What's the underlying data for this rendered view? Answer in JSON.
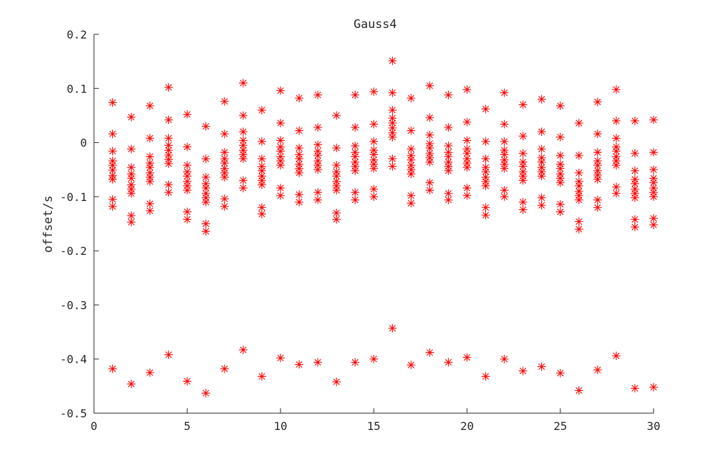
{
  "chart_data": {
    "type": "scatter",
    "title": "Gauss4",
    "xlabel": "",
    "ylabel": "offset/s",
    "xlim": [
      0,
      30
    ],
    "ylim": [
      -0.5,
      0.2
    ],
    "xticks": [
      "0",
      "5",
      "10",
      "15",
      "20",
      "25",
      "30"
    ],
    "yticks": [
      "0.2",
      "0.1",
      "0",
      "-0.1",
      "-0.2",
      "-0.3",
      "-0.4",
      "-0.5"
    ],
    "xtick_values": [
      0,
      5,
      10,
      15,
      20,
      25,
      30
    ],
    "ytick_values": [
      0.2,
      0.1,
      0,
      -0.1,
      -0.2,
      -0.3,
      -0.4,
      -0.5
    ],
    "marker": "asterisk",
    "marker_color": "#ff0000",
    "grid": false,
    "points": [
      [
        1,
        0.074
      ],
      [
        1,
        0.016
      ],
      [
        1,
        -0.016
      ],
      [
        1,
        -0.034
      ],
      [
        1,
        -0.042
      ],
      [
        1,
        -0.051
      ],
      [
        1,
        -0.061
      ],
      [
        1,
        -0.068
      ],
      [
        1,
        -0.105
      ],
      [
        1,
        -0.118
      ],
      [
        1,
        -0.418
      ],
      [
        2,
        0.047
      ],
      [
        2,
        -0.012
      ],
      [
        2,
        -0.046
      ],
      [
        2,
        -0.058
      ],
      [
        2,
        -0.066
      ],
      [
        2,
        -0.078
      ],
      [
        2,
        -0.086
      ],
      [
        2,
        -0.094
      ],
      [
        2,
        -0.135
      ],
      [
        2,
        -0.147
      ],
      [
        2,
        -0.446
      ],
      [
        3,
        0.068
      ],
      [
        3,
        0.008
      ],
      [
        3,
        -0.026
      ],
      [
        3,
        -0.038
      ],
      [
        3,
        -0.046
      ],
      [
        3,
        -0.056
      ],
      [
        3,
        -0.064
      ],
      [
        3,
        -0.072
      ],
      [
        3,
        -0.113
      ],
      [
        3,
        -0.126
      ],
      [
        3,
        -0.425
      ],
      [
        4,
        0.102
      ],
      [
        4,
        0.042
      ],
      [
        4,
        0.008
      ],
      [
        4,
        -0.005
      ],
      [
        4,
        -0.014
      ],
      [
        4,
        -0.023
      ],
      [
        4,
        -0.031
      ],
      [
        4,
        -0.039
      ],
      [
        4,
        -0.078
      ],
      [
        4,
        -0.092
      ],
      [
        4,
        -0.392
      ],
      [
        5,
        0.052
      ],
      [
        5,
        -0.008
      ],
      [
        5,
        -0.042
      ],
      [
        5,
        -0.054
      ],
      [
        5,
        -0.062
      ],
      [
        5,
        -0.072
      ],
      [
        5,
        -0.08
      ],
      [
        5,
        -0.088
      ],
      [
        5,
        -0.128
      ],
      [
        5,
        -0.142
      ],
      [
        5,
        -0.441
      ],
      [
        6,
        0.03
      ],
      [
        6,
        -0.03
      ],
      [
        6,
        -0.064
      ],
      [
        6,
        -0.076
      ],
      [
        6,
        -0.084
      ],
      [
        6,
        -0.094
      ],
      [
        6,
        -0.102
      ],
      [
        6,
        -0.11
      ],
      [
        6,
        -0.15
      ],
      [
        6,
        -0.164
      ],
      [
        6,
        -0.463
      ],
      [
        7,
        0.076
      ],
      [
        7,
        0.016
      ],
      [
        7,
        -0.018
      ],
      [
        7,
        -0.03
      ],
      [
        7,
        -0.038
      ],
      [
        7,
        -0.048
      ],
      [
        7,
        -0.056
      ],
      [
        7,
        -0.064
      ],
      [
        7,
        -0.104
      ],
      [
        7,
        -0.118
      ],
      [
        7,
        -0.418
      ],
      [
        8,
        0.11
      ],
      [
        8,
        0.05
      ],
      [
        8,
        0.02
      ],
      [
        8,
        0.004
      ],
      [
        8,
        -0.005
      ],
      [
        8,
        -0.014
      ],
      [
        8,
        -0.022
      ],
      [
        8,
        -0.03
      ],
      [
        8,
        -0.07
      ],
      [
        8,
        -0.084
      ],
      [
        8,
        -0.383
      ],
      [
        9,
        0.06
      ],
      [
        9,
        0.002
      ],
      [
        9,
        -0.03
      ],
      [
        9,
        -0.044
      ],
      [
        9,
        -0.052
      ],
      [
        9,
        -0.062
      ],
      [
        9,
        -0.07
      ],
      [
        9,
        -0.078
      ],
      [
        9,
        -0.12
      ],
      [
        9,
        -0.132
      ],
      [
        9,
        -0.432
      ],
      [
        10,
        0.096
      ],
      [
        10,
        0.036
      ],
      [
        10,
        0.004
      ],
      [
        10,
        -0.008
      ],
      [
        10,
        -0.016
      ],
      [
        10,
        -0.026
      ],
      [
        10,
        -0.034
      ],
      [
        10,
        -0.042
      ],
      [
        10,
        -0.084
      ],
      [
        10,
        -0.098
      ],
      [
        10,
        -0.398
      ],
      [
        11,
        0.082
      ],
      [
        11,
        0.022
      ],
      [
        11,
        -0.01
      ],
      [
        11,
        -0.022
      ],
      [
        11,
        -0.03
      ],
      [
        11,
        -0.04
      ],
      [
        11,
        -0.048
      ],
      [
        11,
        -0.056
      ],
      [
        11,
        -0.096
      ],
      [
        11,
        -0.11
      ],
      [
        11,
        -0.41
      ],
      [
        12,
        0.088
      ],
      [
        12,
        0.028
      ],
      [
        12,
        -0.004
      ],
      [
        12,
        -0.016
      ],
      [
        12,
        -0.024
      ],
      [
        12,
        -0.034
      ],
      [
        12,
        -0.042
      ],
      [
        12,
        -0.05
      ],
      [
        12,
        -0.092
      ],
      [
        12,
        -0.106
      ],
      [
        12,
        -0.406
      ],
      [
        13,
        0.05
      ],
      [
        13,
        -0.01
      ],
      [
        13,
        -0.042
      ],
      [
        13,
        -0.054
      ],
      [
        13,
        -0.062
      ],
      [
        13,
        -0.072
      ],
      [
        13,
        -0.08
      ],
      [
        13,
        -0.088
      ],
      [
        13,
        -0.13
      ],
      [
        13,
        -0.142
      ],
      [
        13,
        -0.442
      ],
      [
        14,
        0.088
      ],
      [
        14,
        0.028
      ],
      [
        14,
        -0.006
      ],
      [
        14,
        -0.018
      ],
      [
        14,
        -0.026
      ],
      [
        14,
        -0.036
      ],
      [
        14,
        -0.044
      ],
      [
        14,
        -0.052
      ],
      [
        14,
        -0.092
      ],
      [
        14,
        -0.106
      ],
      [
        14,
        -0.406
      ],
      [
        15,
        0.094
      ],
      [
        15,
        0.034
      ],
      [
        15,
        0.002
      ],
      [
        15,
        -0.014
      ],
      [
        15,
        -0.022
      ],
      [
        15,
        -0.032
      ],
      [
        15,
        -0.04
      ],
      [
        15,
        -0.048
      ],
      [
        15,
        -0.086
      ],
      [
        15,
        -0.1
      ],
      [
        15,
        -0.4
      ],
      [
        16,
        0.151
      ],
      [
        16,
        0.092
      ],
      [
        16,
        0.06
      ],
      [
        16,
        0.045
      ],
      [
        16,
        0.036
      ],
      [
        16,
        0.027
      ],
      [
        16,
        0.018
      ],
      [
        16,
        0.01
      ],
      [
        16,
        -0.03
      ],
      [
        16,
        -0.044
      ],
      [
        16,
        -0.343
      ],
      [
        17,
        0.082
      ],
      [
        17,
        0.022
      ],
      [
        17,
        -0.012
      ],
      [
        17,
        -0.024
      ],
      [
        17,
        -0.032
      ],
      [
        17,
        -0.042
      ],
      [
        17,
        -0.05
      ],
      [
        17,
        -0.058
      ],
      [
        17,
        -0.098
      ],
      [
        17,
        -0.112
      ],
      [
        17,
        -0.411
      ],
      [
        18,
        0.105
      ],
      [
        18,
        0.046
      ],
      [
        18,
        0.014
      ],
      [
        18,
        -0.002
      ],
      [
        18,
        -0.01
      ],
      [
        18,
        -0.02
      ],
      [
        18,
        -0.028
      ],
      [
        18,
        -0.036
      ],
      [
        18,
        -0.074
      ],
      [
        18,
        -0.088
      ],
      [
        18,
        -0.388
      ],
      [
        19,
        0.088
      ],
      [
        19,
        0.028
      ],
      [
        19,
        -0.006
      ],
      [
        19,
        -0.018
      ],
      [
        19,
        -0.026
      ],
      [
        19,
        -0.036
      ],
      [
        19,
        -0.044
      ],
      [
        19,
        -0.052
      ],
      [
        19,
        -0.094
      ],
      [
        19,
        -0.106
      ],
      [
        19,
        -0.406
      ],
      [
        20,
        0.098
      ],
      [
        20,
        0.038
      ],
      [
        20,
        0.004
      ],
      [
        20,
        -0.012
      ],
      [
        20,
        -0.02
      ],
      [
        20,
        -0.03
      ],
      [
        20,
        -0.038
      ],
      [
        20,
        -0.046
      ],
      [
        20,
        -0.084
      ],
      [
        20,
        -0.098
      ],
      [
        20,
        -0.397
      ],
      [
        21,
        0.062
      ],
      [
        21,
        0.002
      ],
      [
        21,
        -0.03
      ],
      [
        21,
        -0.046
      ],
      [
        21,
        -0.054
      ],
      [
        21,
        -0.064
      ],
      [
        21,
        -0.072
      ],
      [
        21,
        -0.08
      ],
      [
        21,
        -0.12
      ],
      [
        21,
        -0.134
      ],
      [
        21,
        -0.432
      ],
      [
        22,
        0.092
      ],
      [
        22,
        0.034
      ],
      [
        22,
        0.002
      ],
      [
        22,
        -0.014
      ],
      [
        22,
        -0.022
      ],
      [
        22,
        -0.032
      ],
      [
        22,
        -0.04
      ],
      [
        22,
        -0.048
      ],
      [
        22,
        -0.088
      ],
      [
        22,
        -0.1
      ],
      [
        22,
        -0.4
      ],
      [
        23,
        0.07
      ],
      [
        23,
        0.012
      ],
      [
        23,
        -0.02
      ],
      [
        23,
        -0.036
      ],
      [
        23,
        -0.044
      ],
      [
        23,
        -0.054
      ],
      [
        23,
        -0.062
      ],
      [
        23,
        -0.07
      ],
      [
        23,
        -0.11
      ],
      [
        23,
        -0.124
      ],
      [
        23,
        -0.422
      ],
      [
        24,
        0.08
      ],
      [
        24,
        0.02
      ],
      [
        24,
        -0.012
      ],
      [
        24,
        -0.028
      ],
      [
        24,
        -0.036
      ],
      [
        24,
        -0.046
      ],
      [
        24,
        -0.054
      ],
      [
        24,
        -0.062
      ],
      [
        24,
        -0.102
      ],
      [
        24,
        -0.116
      ],
      [
        24,
        -0.414
      ],
      [
        25,
        0.068
      ],
      [
        25,
        0.01
      ],
      [
        25,
        -0.024
      ],
      [
        25,
        -0.04
      ],
      [
        25,
        -0.048
      ],
      [
        25,
        -0.058
      ],
      [
        25,
        -0.066
      ],
      [
        25,
        -0.074
      ],
      [
        25,
        -0.114
      ],
      [
        25,
        -0.128
      ],
      [
        25,
        -0.426
      ],
      [
        26,
        0.036
      ],
      [
        26,
        -0.024
      ],
      [
        26,
        -0.056
      ],
      [
        26,
        -0.072
      ],
      [
        26,
        -0.08
      ],
      [
        26,
        -0.09
      ],
      [
        26,
        -0.098
      ],
      [
        26,
        -0.106
      ],
      [
        26,
        -0.146
      ],
      [
        26,
        -0.16
      ],
      [
        26,
        -0.458
      ],
      [
        27,
        0.075
      ],
      [
        27,
        0.016
      ],
      [
        27,
        -0.018
      ],
      [
        27,
        -0.034
      ],
      [
        27,
        -0.042
      ],
      [
        27,
        -0.052
      ],
      [
        27,
        -0.06
      ],
      [
        27,
        -0.068
      ],
      [
        27,
        -0.106
      ],
      [
        27,
        -0.12
      ],
      [
        27,
        -0.42
      ],
      [
        28,
        0.098
      ],
      [
        28,
        0.04
      ],
      [
        28,
        0.008
      ],
      [
        28,
        -0.008
      ],
      [
        28,
        -0.016
      ],
      [
        28,
        -0.026
      ],
      [
        28,
        -0.034
      ],
      [
        28,
        -0.042
      ],
      [
        28,
        -0.082
      ],
      [
        28,
        -0.094
      ],
      [
        28,
        -0.394
      ],
      [
        29,
        0.04
      ],
      [
        29,
        -0.02
      ],
      [
        29,
        -0.052
      ],
      [
        29,
        -0.068
      ],
      [
        29,
        -0.076
      ],
      [
        29,
        -0.086
      ],
      [
        29,
        -0.094
      ],
      [
        29,
        -0.102
      ],
      [
        29,
        -0.142
      ],
      [
        29,
        -0.156
      ],
      [
        29,
        -0.454
      ],
      [
        30,
        0.042
      ],
      [
        30,
        -0.018
      ],
      [
        30,
        -0.05
      ],
      [
        30,
        -0.066
      ],
      [
        30,
        -0.074
      ],
      [
        30,
        -0.084
      ],
      [
        30,
        -0.092
      ],
      [
        30,
        -0.1
      ],
      [
        30,
        -0.14
      ],
      [
        30,
        -0.152
      ],
      [
        30,
        -0.452
      ]
    ]
  }
}
